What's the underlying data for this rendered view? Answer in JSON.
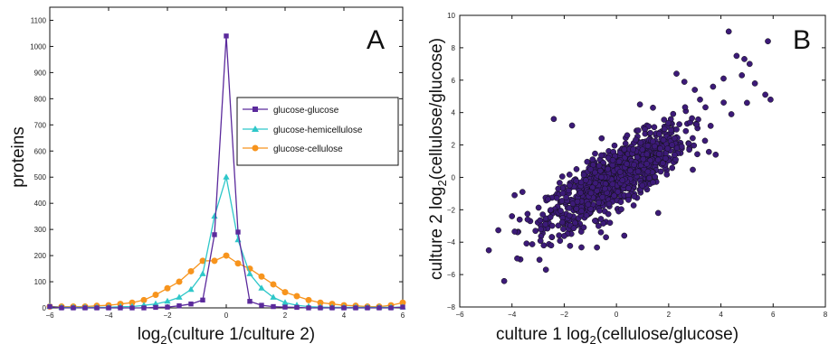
{
  "chart_data": [
    {
      "type": "line",
      "panel_label": "A",
      "xlabel_parts": [
        "log",
        "2",
        "(culture 1/culture 2)"
      ],
      "ylabel": "proteins",
      "xlim": [
        -6,
        6
      ],
      "ylim": [
        0,
        1150
      ],
      "xticks": [
        -6,
        -4,
        -2,
        0,
        2,
        4,
        6
      ],
      "yticks": [
        0,
        100,
        200,
        300,
        400,
        500,
        600,
        700,
        800,
        900,
        1000,
        1100
      ],
      "grid": false,
      "legend_position": "upper-right",
      "x": [
        -6.0,
        -5.6,
        -5.2,
        -4.8,
        -4.4,
        -4.0,
        -3.6,
        -3.2,
        -2.8,
        -2.4,
        -2.0,
        -1.6,
        -1.2,
        -0.8,
        -0.4,
        0.0,
        0.4,
        0.8,
        1.2,
        1.6,
        2.0,
        2.4,
        2.8,
        3.2,
        3.6,
        4.0,
        4.4,
        4.8,
        5.2,
        5.6,
        6.0
      ],
      "series": [
        {
          "name": "glucose-glucose",
          "color": "#5b2a9c",
          "marker": "square",
          "values": [
            5,
            0,
            0,
            0,
            0,
            0,
            0,
            0,
            0,
            2,
            3,
            8,
            15,
            30,
            280,
            1040,
            290,
            25,
            10,
            5,
            3,
            2,
            0,
            0,
            0,
            0,
            0,
            0,
            0,
            0,
            3
          ]
        },
        {
          "name": "glucose-hemicellulose",
          "color": "#2ec7c9",
          "marker": "triangle",
          "values": [
            5,
            2,
            2,
            2,
            2,
            2,
            5,
            5,
            10,
            15,
            25,
            40,
            70,
            130,
            350,
            500,
            260,
            130,
            75,
            40,
            20,
            10,
            5,
            3,
            2,
            2,
            2,
            2,
            2,
            2,
            3
          ]
        },
        {
          "name": "glucose-cellulose",
          "color": "#f7941d",
          "marker": "circle",
          "values": [
            5,
            5,
            5,
            5,
            8,
            10,
            15,
            20,
            30,
            50,
            75,
            100,
            140,
            180,
            180,
            200,
            170,
            150,
            120,
            90,
            60,
            45,
            30,
            20,
            15,
            10,
            8,
            5,
            5,
            10,
            20
          ]
        }
      ]
    },
    {
      "type": "scatter",
      "panel_label": "B",
      "xlabel_parts": [
        "culture 1 log",
        "2",
        "(cellulose/glucose)"
      ],
      "ylabel_parts": [
        "culture 2 log",
        "2",
        "(cellulose/glucose)"
      ],
      "xlim": [
        -6,
        8
      ],
      "ylim": [
        -8,
        10
      ],
      "xticks": [
        -6,
        -4,
        -2,
        0,
        2,
        4,
        6,
        8
      ],
      "yticks": [
        -8,
        -6,
        -4,
        -2,
        0,
        2,
        4,
        6,
        8,
        10
      ],
      "grid": false,
      "point_color": "#3c1a78",
      "point_edge": "#111111",
      "cluster": {
        "n": 1100,
        "mean": [
          0,
          0
        ],
        "sd_x": 1.3,
        "sd_y": 1.5,
        "slope": 0.95,
        "residual_sd": 0.9
      },
      "outliers": [
        [
          -4.3,
          -6.4
        ],
        [
          -3.8,
          -5.0
        ],
        [
          -2.7,
          -5.7
        ],
        [
          -2.5,
          -4.2
        ],
        [
          -3.3,
          -2.7
        ],
        [
          -3.4,
          -2.6
        ],
        [
          -3.9,
          -1.1
        ],
        [
          -3.6,
          -0.9
        ],
        [
          -2.4,
          3.6
        ],
        [
          -1.7,
          3.2
        ],
        [
          -0.4,
          -3.7
        ],
        [
          0.3,
          -3.6
        ],
        [
          0.9,
          4.5
        ],
        [
          1.4,
          4.3
        ],
        [
          2.5,
          1.9
        ],
        [
          3.8,
          1.4
        ],
        [
          1.6,
          -2.2
        ],
        [
          2.3,
          6.4
        ],
        [
          4.3,
          9.0
        ],
        [
          4.6,
          7.5
        ],
        [
          4.9,
          7.3
        ],
        [
          5.1,
          7.0
        ],
        [
          5.3,
          5.8
        ],
        [
          5.7,
          5.1
        ],
        [
          5.9,
          4.8
        ],
        [
          5.8,
          8.4
        ],
        [
          4.8,
          6.3
        ],
        [
          3.2,
          4.8
        ],
        [
          3.7,
          5.6
        ],
        [
          4.1,
          6.1
        ],
        [
          5.0,
          4.6
        ],
        [
          3.0,
          5.4
        ],
        [
          -4.0,
          -2.4
        ],
        [
          -3.1,
          -3.3
        ],
        [
          2.6,
          5.9
        ],
        [
          4.4,
          3.9
        ]
      ]
    }
  ]
}
